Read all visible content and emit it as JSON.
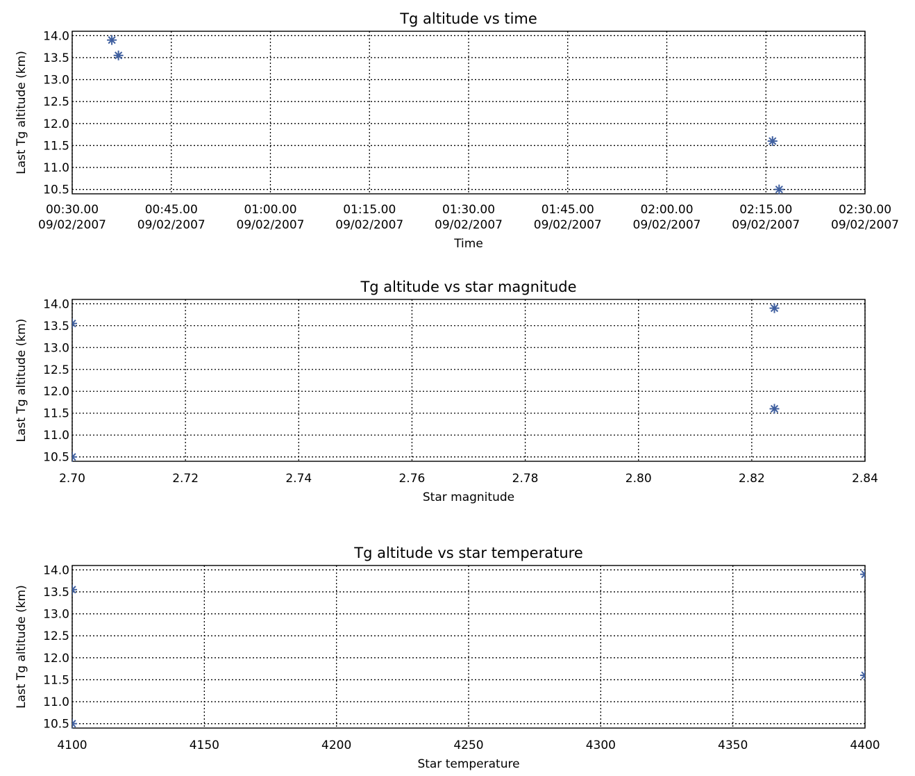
{
  "chart_data": [
    {
      "type": "scatter",
      "title": "Tg altitude vs time",
      "xlabel": "Time",
      "ylabel": "Last Tg altitude (km)",
      "xlim": [
        "00:30:00",
        "02:30:00"
      ],
      "ylim": [
        10.4,
        14.1
      ],
      "x_ticks": [
        "00:30:00",
        "00:45:00",
        "01:00:00",
        "01:15:00",
        "01:30:00",
        "01:45:00",
        "02:00:00",
        "02:15:00",
        "02:30:00"
      ],
      "x_tick_labels": [
        [
          "00:30.00",
          "09/02/2007"
        ],
        [
          "00:45.00",
          "09/02/2007"
        ],
        [
          "01:00.00",
          "09/02/2007"
        ],
        [
          "01:15.00",
          "09/02/2007"
        ],
        [
          "01:30.00",
          "09/02/2007"
        ],
        [
          "01:45.00",
          "09/02/2007"
        ],
        [
          "02:00.00",
          "09/02/2007"
        ],
        [
          "02:15.00",
          "09/02/2007"
        ],
        [
          "02:30.00",
          "09/02/2007"
        ]
      ],
      "y_ticks": [
        10.5,
        11.0,
        11.5,
        12.0,
        12.5,
        13.0,
        13.5,
        14.0
      ],
      "y_tick_labels": [
        "10.5",
        "11.0",
        "11.5",
        "12.0",
        "12.5",
        "13.0",
        "13.5",
        "14.0"
      ],
      "grid": true,
      "marker": "asterisk",
      "marker_color": "#3f5f9f",
      "points": [
        {
          "x": "00:36:00",
          "y": 13.9
        },
        {
          "x": "00:37:00",
          "y": 13.55
        },
        {
          "x": "02:16:00",
          "y": 11.6
        },
        {
          "x": "02:17:00",
          "y": 10.5
        }
      ]
    },
    {
      "type": "scatter",
      "title": "Tg altitude vs star magnitude",
      "xlabel": "Star magnitude",
      "ylabel": "Last Tg altitude (km)",
      "xlim": [
        2.7,
        2.84
      ],
      "ylim": [
        10.4,
        14.1
      ],
      "x_ticks": [
        2.7,
        2.72,
        2.74,
        2.76,
        2.78,
        2.8,
        2.82,
        2.84
      ],
      "x_tick_labels": [
        "2.70",
        "2.72",
        "2.74",
        "2.76",
        "2.78",
        "2.80",
        "2.82",
        "2.84"
      ],
      "y_ticks": [
        10.5,
        11.0,
        11.5,
        12.0,
        12.5,
        13.0,
        13.5,
        14.0
      ],
      "y_tick_labels": [
        "10.5",
        "11.0",
        "11.5",
        "12.0",
        "12.5",
        "13.0",
        "13.5",
        "14.0"
      ],
      "grid": true,
      "marker": "asterisk",
      "marker_color": "#3f5f9f",
      "points": [
        {
          "x": 2.7,
          "y": 13.55
        },
        {
          "x": 2.7,
          "y": 10.5
        },
        {
          "x": 2.824,
          "y": 13.9
        },
        {
          "x": 2.824,
          "y": 11.6
        }
      ]
    },
    {
      "type": "scatter",
      "title": "Tg altitude vs star temperature",
      "xlabel": "Star temperature",
      "ylabel": "Last Tg altitude (km)",
      "xlim": [
        4100,
        4400
      ],
      "ylim": [
        10.4,
        14.1
      ],
      "x_ticks": [
        4100,
        4150,
        4200,
        4250,
        4300,
        4350,
        4400
      ],
      "x_tick_labels": [
        "4100",
        "4150",
        "4200",
        "4250",
        "4300",
        "4350",
        "4400"
      ],
      "y_ticks": [
        10.5,
        11.0,
        11.5,
        12.0,
        12.5,
        13.0,
        13.5,
        14.0
      ],
      "y_tick_labels": [
        "10.5",
        "11.0",
        "11.5",
        "12.0",
        "12.5",
        "13.0",
        "13.5",
        "14.0"
      ],
      "grid": true,
      "marker": "asterisk",
      "marker_color": "#3f5f9f",
      "points": [
        {
          "x": 4100,
          "y": 13.55
        },
        {
          "x": 4100,
          "y": 10.5
        },
        {
          "x": 4400,
          "y": 13.9
        },
        {
          "x": 4400,
          "y": 11.6
        }
      ]
    }
  ]
}
